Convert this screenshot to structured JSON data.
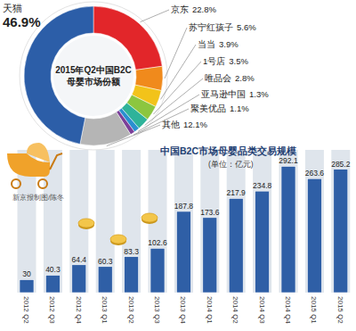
{
  "chart_data": [
    {
      "type": "pie",
      "title": "2015年Q2中国B2C母婴市场份额",
      "categories": [
        "京东",
        "苏宁红孩子",
        "当当",
        "1号店",
        "唯品会",
        "亚马逊中国",
        "聚美优品",
        "其他",
        "天猫"
      ],
      "values": [
        22.8,
        5.6,
        3.9,
        3.5,
        2.8,
        1.3,
        1.1,
        12.1,
        46.9
      ],
      "value_labels": [
        "22.8%",
        "5.6%",
        "3.9%",
        "3.5%",
        "2.8%",
        "1.3%",
        "1.1%",
        "12.1%",
        "46.9%"
      ],
      "colors": [
        "#e2262a",
        "#f08a1c",
        "#f2c31a",
        "#8cc63f",
        "#2fb39a",
        "#2a8fd0",
        "#7b3f98",
        "#b5b5b5",
        "#2c5ea8"
      ],
      "data_labels": true
    },
    {
      "type": "bar",
      "title": "中国B2C市场母婴品类交易规模",
      "subtitle": "(单位：亿元)",
      "annotation": "新京报制图/陈冬",
      "categories": [
        "2012 Q2",
        "2012 Q3",
        "2012 Q4",
        "2013 Q1",
        "2013 Q2",
        "2013 Q3",
        "2013 Q4",
        "2014 Q1",
        "2014 Q2",
        "2014 Q3",
        "2014 Q4",
        "2015 Q1",
        "2015 Q2"
      ],
      "values": [
        30,
        40.3,
        64.4,
        60.3,
        83.3,
        102.6,
        187.8,
        173.6,
        217.9,
        234.8,
        292.1,
        263.6,
        285.2
      ],
      "color": "#2f5fa6",
      "ylim": [
        0,
        330
      ],
      "tick_labels": "x",
      "data_labels": true
    }
  ]
}
